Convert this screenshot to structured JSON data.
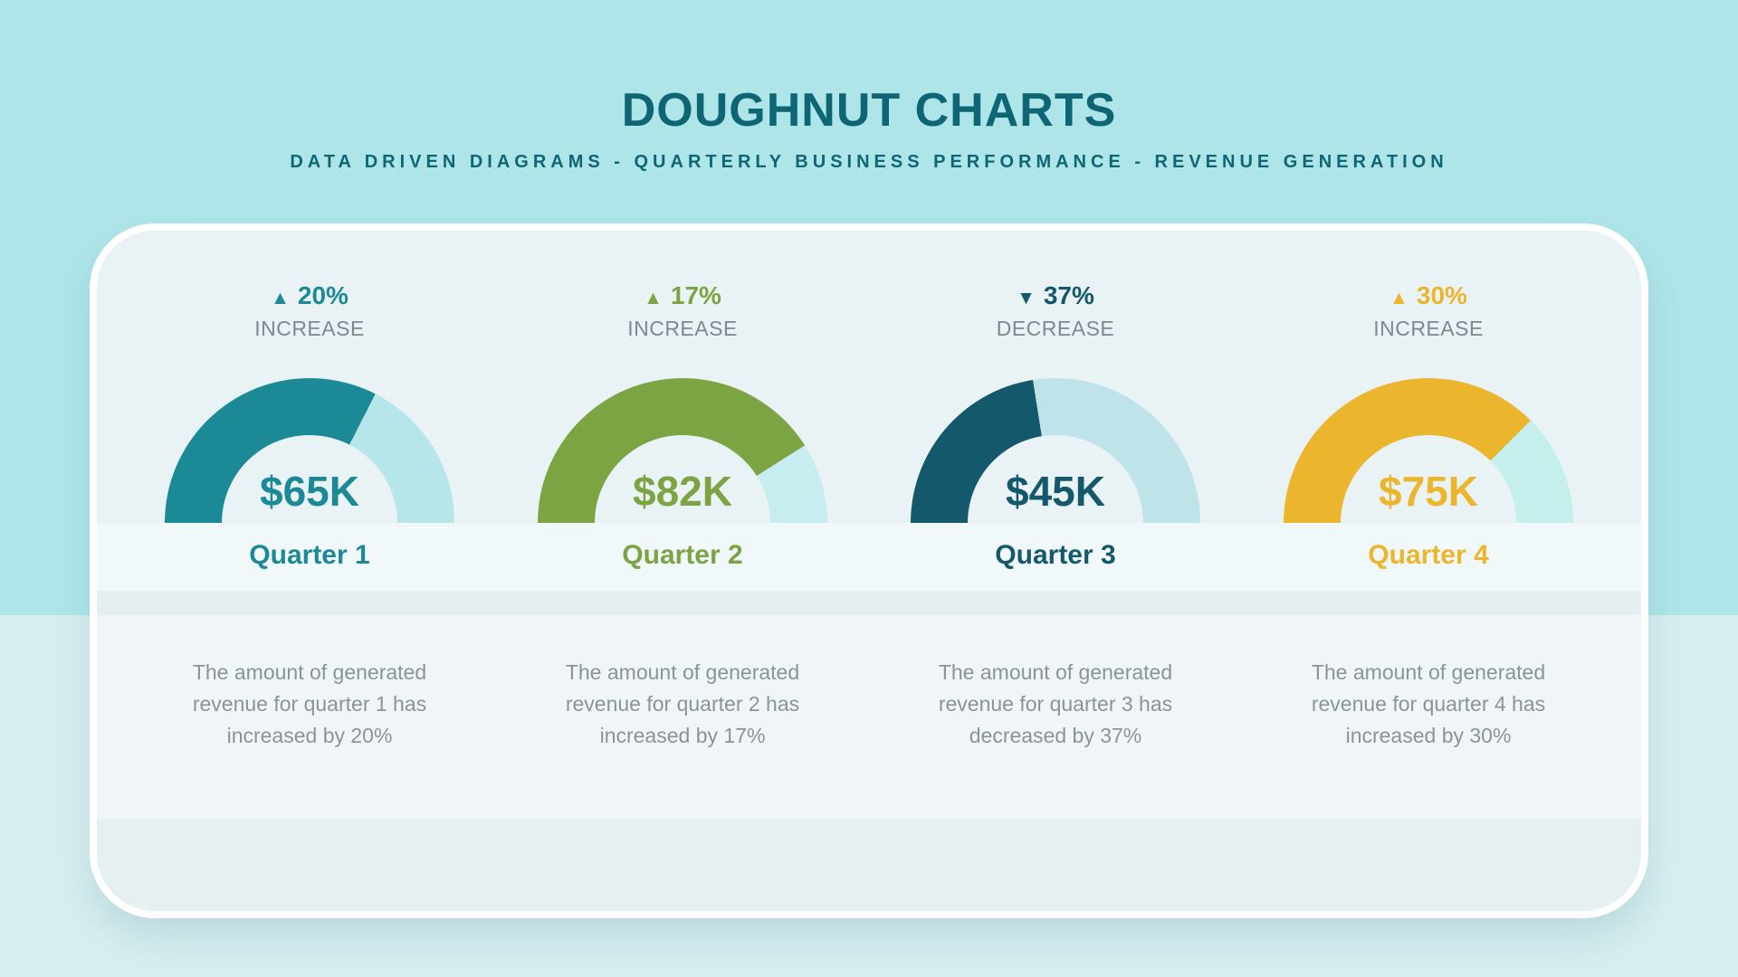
{
  "page": {
    "title": "DOUGHNUT CHARTS",
    "subtitle": "DATA DRIVEN DIAGRAMS - QUARTERLY BUSINESS PERFORMANCE - REVENUE GENERATION",
    "colors": {
      "page_top": "#aee5e9",
      "page_bottom": "#d6eef0",
      "title": "#0e6675",
      "card_border": "#ffffff",
      "charts_bg": "#e9f2f4",
      "quarter_band_bg": "#f1f8f9",
      "thin_band_bg": "#e5eff1",
      "desc_bg": "#f0f6f7",
      "bottom_band_bg": "#e6f0f2",
      "label_gray": "#7d8893",
      "desc_gray": "#8a939b"
    }
  },
  "chart_data": {
    "type": "pie",
    "subtype": "semicircle-doughnut-gauge",
    "title": "Doughnut Charts — Quarterly Business Performance — Revenue Generation",
    "units": "USD thousands",
    "gauge_range_pct": [
      0,
      100
    ],
    "quarters": [
      {
        "label": "Quarter 1",
        "value_label": "$65K",
        "value_k": 65,
        "fill_pct": 65,
        "arrow": "▲",
        "change_pct": "20%",
        "direction_label": "INCREASE",
        "accent": "#1b8996",
        "rest": "#b6e6ea",
        "description_lines": [
          "The amount of generated",
          "revenue for quarter 1 has",
          "increased by 20%"
        ]
      },
      {
        "label": "Quarter 2",
        "value_label": "$82K",
        "value_k": 82,
        "fill_pct": 82,
        "arrow": "▲",
        "change_pct": "17%",
        "direction_label": "INCREASE",
        "accent": "#7da443",
        "rest": "#c8edf0",
        "description_lines": [
          "The amount of generated",
          "revenue for quarter 2 has",
          "increased by 17%"
        ]
      },
      {
        "label": "Quarter 3",
        "value_label": "$45K",
        "value_k": 45,
        "fill_pct": 45,
        "arrow": "▼",
        "change_pct": "37%",
        "direction_label": "DECREASE",
        "accent": "#14596b",
        "rest": "#bee4ea",
        "description_lines": [
          "The amount of generated",
          "revenue for quarter 3 has",
          "decreased by 37%"
        ]
      },
      {
        "label": "Quarter 4",
        "value_label": "$75K",
        "value_k": 75,
        "fill_pct": 75,
        "arrow": "▲",
        "change_pct": "30%",
        "direction_label": "INCREASE",
        "accent": "#ebb52e",
        "rest": "#c5efec",
        "description_lines": [
          "The amount of generated",
          "revenue for quarter 4 has",
          "increased by 30%"
        ]
      }
    ]
  }
}
